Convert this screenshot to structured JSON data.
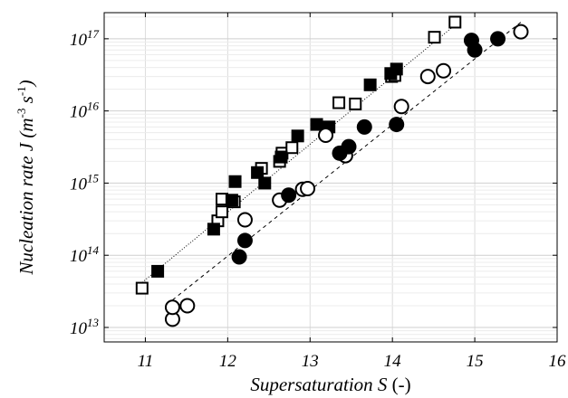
{
  "chart_data": {
    "type": "scatter",
    "title": "",
    "xlabel": "Supersaturation S (-)",
    "ylabel": "Nucleation rate J (m-3 s-1)",
    "xlabel_parts": {
      "italic": "Supersaturation S",
      "plain": " (-)"
    },
    "ylabel_parts": {
      "prefix": "Nucleation rate J (m",
      "exp1": "-3",
      "mid": " s",
      "exp2": "-1",
      "suffix": ")"
    },
    "xscale": "linear",
    "yscale": "log",
    "xlim": [
      10.5,
      16
    ],
    "ylim": [
      6300000000000.0,
      2.3e+17
    ],
    "grid": true,
    "x_ticks": [
      {
        "value": 11,
        "label": "11"
      },
      {
        "value": 12,
        "label": "12"
      },
      {
        "value": 13,
        "label": "13"
      },
      {
        "value": 14,
        "label": "14"
      },
      {
        "value": 15,
        "label": "15"
      },
      {
        "value": 16,
        "label": "16"
      }
    ],
    "y_ticks": [
      {
        "exponent": 13,
        "base": "10",
        "exp": "13"
      },
      {
        "exponent": 14,
        "base": "10",
        "exp": "14"
      },
      {
        "exponent": 15,
        "base": "10",
        "exp": "15"
      },
      {
        "exponent": 16,
        "base": "10",
        "exp": "16"
      },
      {
        "exponent": 17,
        "base": "10",
        "exp": "17"
      }
    ],
    "series": [
      {
        "marker": "square-open",
        "color": "#000000",
        "points": [
          [
            10.96,
            35000000000000.0
          ],
          [
            11.88,
            300000000000000.0
          ],
          [
            11.93,
            400000000000000.0
          ],
          [
            11.93,
            600000000000000.0
          ],
          [
            12.08,
            550000000000000.0
          ],
          [
            12.41,
            1600000000000000.0
          ],
          [
            12.63,
            2000000000000000.0
          ],
          [
            12.66,
            2600000000000000.0
          ],
          [
            12.78,
            3100000000000000.0
          ],
          [
            13.35,
            1.3e+16
          ],
          [
            13.55,
            1.25e+16
          ],
          [
            13.99,
            3e+16
          ],
          [
            14.03,
            3.1e+16
          ],
          [
            14.51,
            1.05e+17
          ],
          [
            14.76,
            1.7e+17
          ]
        ]
      },
      {
        "marker": "square-filled",
        "color": "#000000",
        "points": [
          [
            11.15,
            60000000000000.0
          ],
          [
            11.83,
            230000000000000.0
          ],
          [
            12.05,
            580000000000000.0
          ],
          [
            12.09,
            1050000000000000.0
          ],
          [
            12.36,
            1400000000000000.0
          ],
          [
            12.45,
            1000000000000000.0
          ],
          [
            12.65,
            2300000000000000.0
          ],
          [
            12.85,
            4500000000000000.0
          ],
          [
            13.08,
            6500000000000000.0
          ],
          [
            13.23,
            6000000000000000.0
          ],
          [
            13.73,
            2.3e+16
          ],
          [
            13.98,
            3.3e+16
          ],
          [
            14.05,
            3.8e+16
          ]
        ]
      },
      {
        "marker": "circle-open",
        "color": "#000000",
        "points": [
          [
            11.33,
            13000000000000.0
          ],
          [
            11.33,
            19000000000000.0
          ],
          [
            11.51,
            20000000000000.0
          ],
          [
            12.21,
            310000000000000.0
          ],
          [
            12.63,
            580000000000000.0
          ],
          [
            12.91,
            820000000000000.0
          ],
          [
            12.97,
            840000000000000.0
          ],
          [
            13.19,
            4600000000000000.0
          ],
          [
            13.43,
            2400000000000000.0
          ],
          [
            14.11,
            1.15e+16
          ],
          [
            14.43,
            3e+16
          ],
          [
            14.62,
            3.6e+16
          ],
          [
            15.56,
            1.25e+17
          ]
        ]
      },
      {
        "marker": "circle-filled",
        "color": "#000000",
        "points": [
          [
            12.14,
            95000000000000.0
          ],
          [
            12.21,
            160000000000000.0
          ],
          [
            12.74,
            680000000000000.0
          ],
          [
            13.36,
            2600000000000000.0
          ],
          [
            13.47,
            3200000000000000.0
          ],
          [
            13.66,
            6000000000000000.0
          ],
          [
            14.05,
            6500000000000000.0
          ],
          [
            14.96,
            9.5e+16
          ],
          [
            15.0,
            7e+16
          ],
          [
            15.28,
            1e+17
          ]
        ]
      }
    ],
    "fit_lines": [
      {
        "style": "dotted",
        "color": "#000000",
        "x": [
          10.96,
          14.76
        ],
        "y": [
          42000000000000.0,
          1.55e+17
        ]
      },
      {
        "style": "dashed",
        "color": "#000000",
        "x": [
          11.33,
          15.56
        ],
        "y": [
          24000000000000.0,
          1.7e+17
        ]
      }
    ]
  }
}
